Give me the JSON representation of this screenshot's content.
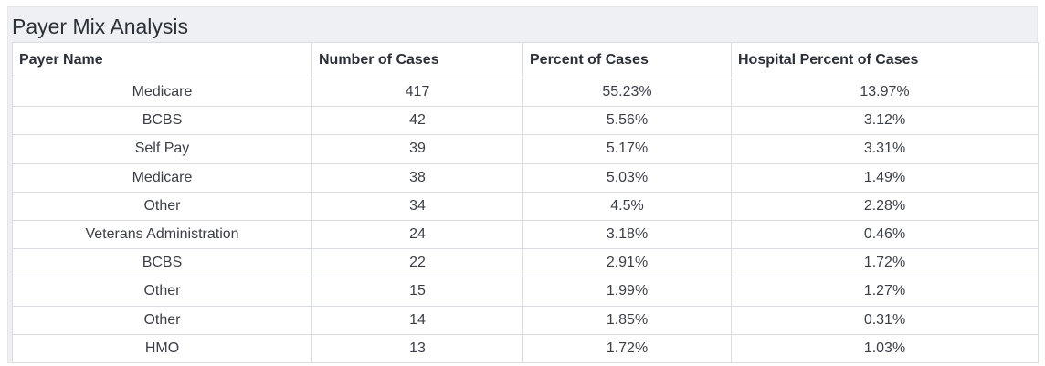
{
  "panel": {
    "title": "Payer Mix Analysis"
  },
  "table": {
    "columns": [
      "Payer Name",
      "Number of Cases",
      "Percent of Cases",
      "Hospital Percent of Cases"
    ],
    "rows": [
      [
        "Medicare",
        "417",
        "55.23%",
        "13.97%"
      ],
      [
        "BCBS",
        "42",
        "5.56%",
        "3.12%"
      ],
      [
        "Self Pay",
        "39",
        "5.17%",
        "3.31%"
      ],
      [
        "Medicare",
        "38",
        "5.03%",
        "1.49%"
      ],
      [
        "Other",
        "34",
        "4.5%",
        "2.28%"
      ],
      [
        "Veterans Administration",
        "24",
        "3.18%",
        "0.46%"
      ],
      [
        "BCBS",
        "22",
        "2.91%",
        "1.72%"
      ],
      [
        "Other",
        "15",
        "1.99%",
        "1.27%"
      ],
      [
        "Other",
        "14",
        "1.85%",
        "0.31%"
      ],
      [
        "HMO",
        "13",
        "1.72%",
        "1.03%"
      ]
    ]
  }
}
